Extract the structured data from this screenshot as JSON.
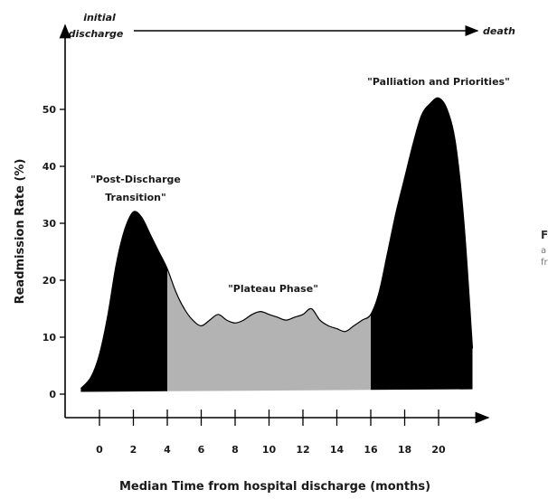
{
  "timeline": {
    "start_label_line1": "initial",
    "start_label_line2": "discharge",
    "end_label": "death"
  },
  "side_text": {
    "line1": "F",
    "line2": "a",
    "line3": "fr"
  },
  "colors": {
    "curve_black": "#000000",
    "plateau_gray": "#b3b3b3",
    "axis": "#000000"
  },
  "chart_data": {
    "type": "area",
    "xlabel": "Median Time from hospital discharge (months)",
    "ylabel": "Readmission Rate (%)",
    "xlim": [
      -1.5,
      22.5
    ],
    "ylim": [
      0,
      60
    ],
    "x_ticks": [
      0,
      2,
      4,
      6,
      8,
      10,
      12,
      14,
      16,
      18,
      20
    ],
    "y_ticks": [
      0,
      10,
      20,
      30,
      40,
      50
    ],
    "phases": [
      {
        "label_line1": "\"Post-Discharge",
        "label_line2": "Transition\"",
        "x_start": -1,
        "x_end": 4,
        "fill": "black"
      },
      {
        "label_line1": "\"Plateau Phase\"",
        "label_line2": "",
        "x_start": 4,
        "x_end": 16,
        "fill": "gray"
      },
      {
        "label_line1": "\"Palliation and Priorities\"",
        "label_line2": "",
        "x_start": 16,
        "x_end": 22,
        "fill": "black"
      }
    ],
    "series": [
      {
        "x": [
          -1.1,
          -0.5,
          0,
          0.5,
          1,
          1.5,
          2,
          2.5,
          3,
          3.5,
          4,
          4.5,
          5,
          5.5,
          6,
          6.5,
          7,
          7.5,
          8,
          8.5,
          9,
          9.5,
          10,
          10.5,
          11,
          11.5,
          12,
          12.5,
          13,
          13.5,
          14,
          14.5,
          15,
          15.5,
          16,
          16.5,
          17,
          17.5,
          18,
          18.5,
          19,
          19.5,
          20,
          20.5,
          21,
          21.5,
          22
        ],
        "y": [
          1,
          3,
          7,
          14,
          23,
          29,
          32,
          31,
          28,
          25,
          22,
          18,
          15,
          13,
          12,
          13,
          14,
          13,
          12.5,
          13,
          14,
          14.5,
          14,
          13.5,
          13,
          13.5,
          14,
          15,
          13,
          12,
          11.5,
          11,
          12,
          13,
          14,
          18,
          25,
          32,
          38,
          44,
          49,
          51,
          52,
          50,
          44,
          30,
          8
        ]
      }
    ]
  }
}
